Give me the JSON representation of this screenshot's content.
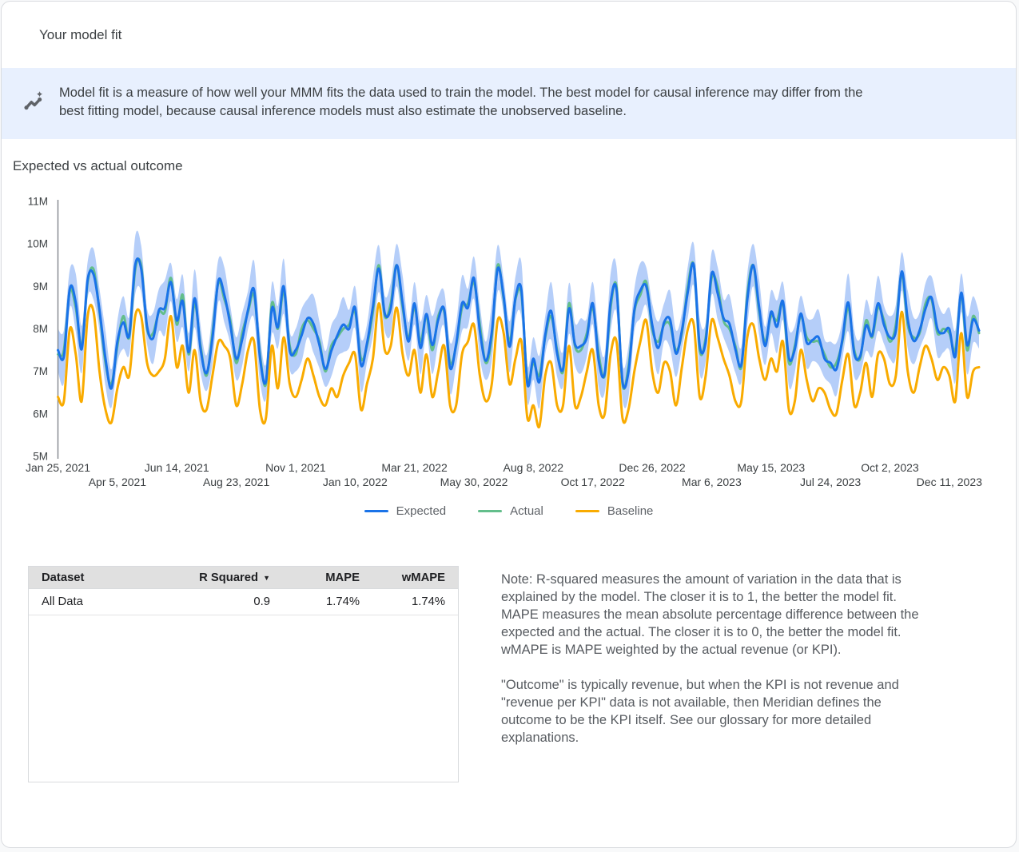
{
  "header": {
    "title": "Your model fit"
  },
  "banner": {
    "icon": "insights-icon",
    "background": "#E8F0FE",
    "lines": [
      "Model fit is a measure of how well your MMM fits the data used to train the model. The best model for causal inference may differ from the",
      "best fitting model, because causal inference models must also estimate the unobserved baseline."
    ]
  },
  "chart_data": {
    "type": "line",
    "title": "Expected vs actual outcome",
    "values_unit": "millions",
    "ylim": [
      5,
      11
    ],
    "y_ticks": [
      "5M",
      "6M",
      "7M",
      "8M",
      "9M",
      "10M",
      "11M"
    ],
    "grid": false,
    "legend_position": "bottom",
    "x_tick_every_n_points": 10,
    "x_ticks": [
      "Jan 25, 2021",
      "Apr 5, 2021",
      "Jun 14, 2021",
      "Aug 23, 2021",
      "Nov 1, 2021",
      "Jan 10, 2022",
      "Mar 21, 2022",
      "May 30, 2022",
      "Aug 8, 2022",
      "Oct 17, 2022",
      "Dec 26, 2022",
      "Mar 6, 2023",
      "May 15, 2023",
      "Jul 24, 2023",
      "Oct 2, 2023",
      "Dec 11, 2023"
    ],
    "series": [
      {
        "name": "Expected",
        "color": "#1A73E8",
        "values": [
          7.5,
          7.35,
          8.95,
          8.62,
          7.52,
          9.16,
          9.28,
          8.44,
          7.3,
          6.6,
          7.7,
          8.15,
          7.85,
          9.5,
          9.42,
          8.06,
          7.78,
          8.44,
          8.5,
          9.1,
          8.2,
          8.65,
          7.45,
          8.72,
          7.52,
          6.96,
          7.78,
          9.14,
          8.8,
          8.1,
          7.3,
          7.75,
          8.45,
          8.92,
          7.32,
          6.76,
          8.48,
          8.04,
          9.0,
          7.5,
          7.5,
          7.85,
          8.25,
          8.12,
          7.62,
          7.06,
          7.48,
          7.84,
          8.1,
          8.0,
          8.5,
          7.15,
          7.65,
          8.52,
          9.42,
          8.36,
          8.48,
          9.5,
          8.6,
          7.7,
          8.6,
          7.55,
          8.35,
          7.62,
          8.22,
          8.46,
          7.08,
          7.64,
          8.6,
          8.5,
          9.2,
          7.95,
          7.25,
          7.92,
          9.42,
          8.76,
          7.58,
          8.74,
          8.9,
          6.7,
          7.3,
          6.75,
          7.85,
          8.42,
          7.42,
          7.06,
          8.48,
          7.64,
          7.6,
          7.8,
          8.6,
          7.25,
          6.95,
          8.62,
          8.92,
          6.76,
          6.98,
          8.44,
          8.9,
          9.0,
          8.1,
          7.55,
          8.15,
          8.22,
          7.42,
          7.96,
          8.88,
          9.5,
          7.6,
          7.7,
          9.3,
          8.85,
          8.25,
          8.12,
          7.52,
          7.16,
          8.68,
          9.5,
          8.5,
          7.6,
          8.4,
          8.05,
          8.65,
          7.32,
          7.52,
          8.36,
          7.68,
          7.74,
          7.8,
          7.3,
          7.2,
          7.05,
          7.75,
          8.62,
          7.42,
          7.36,
          8.08,
          7.84,
          8.6,
          8.1,
          7.8,
          7.95,
          9.35,
          8.22,
          7.72,
          7.96,
          8.48,
          8.74,
          8.0,
          7.9,
          8.0,
          7.35,
          8.85,
          7.62,
          8.22,
          7.96
        ]
      },
      {
        "name": "Actual",
        "color": "#63BE8B",
        "values": [
          7.4,
          7.5,
          8.9,
          8.5,
          7.6,
          9.1,
          9.4,
          8.4,
          7.2,
          6.7,
          7.6,
          8.3,
          7.8,
          9.4,
          9.5,
          8.0,
          7.9,
          8.4,
          8.4,
          9.2,
          8.1,
          8.8,
          7.4,
          8.6,
          7.6,
          6.9,
          7.9,
          9.1,
          8.7,
          8.2,
          7.2,
          7.9,
          8.4,
          8.8,
          7.4,
          6.7,
          8.6,
          8.0,
          8.9,
          7.6,
          7.4,
          8.0,
          8.2,
          8.0,
          7.7,
          7.0,
          7.6,
          7.8,
          8.0,
          8.1,
          8.4,
          7.3,
          7.6,
          8.4,
          9.5,
          8.3,
          8.6,
          9.5,
          8.5,
          7.8,
          8.5,
          7.7,
          8.3,
          7.5,
          8.3,
          8.4,
          7.2,
          7.6,
          8.5,
          8.6,
          9.1,
          8.1,
          7.2,
          7.8,
          9.5,
          8.7,
          7.7,
          8.7,
          8.8,
          6.8,
          7.2,
          6.9,
          7.8,
          8.3,
          7.5,
          7.0,
          8.6,
          7.6,
          7.5,
          7.9,
          8.5,
          7.4,
          6.9,
          8.5,
          9.0,
          6.7,
          7.1,
          8.4,
          8.8,
          9.1,
          8.0,
          7.7,
          8.1,
          8.1,
          7.5,
          7.9,
          9.0,
          9.5,
          7.5,
          7.8,
          9.2,
          9.0,
          8.2,
          8.0,
          7.6,
          7.1,
          8.8,
          9.5,
          8.4,
          7.7,
          8.3,
          8.2,
          8.6,
          7.2,
          7.6,
          8.3,
          7.8,
          7.7,
          7.7,
          7.4,
          7.1,
          7.2,
          7.7,
          8.5,
          7.5,
          7.3,
          8.2,
          7.8,
          8.5,
          8.2,
          7.7,
          8.1,
          9.3,
          8.1,
          7.8,
          7.9,
          8.6,
          8.7,
          7.9,
          8.0,
          7.9,
          7.5,
          8.8,
          7.5,
          8.3,
          7.9
        ]
      },
      {
        "name": "Baseline",
        "color": "#F9AB00",
        "values": [
          6.4,
          6.3,
          8.0,
          7.4,
          6.3,
          8.3,
          8.4,
          7.0,
          6.1,
          5.8,
          6.6,
          7.1,
          6.9,
          8.3,
          8.3,
          7.2,
          6.9,
          7.0,
          7.3,
          8.3,
          7.1,
          7.6,
          6.5,
          7.5,
          6.3,
          6.1,
          6.9,
          7.7,
          7.6,
          7.3,
          6.2,
          6.7,
          7.5,
          7.7,
          6.1,
          5.9,
          7.6,
          6.6,
          7.8,
          6.7,
          6.4,
          6.8,
          7.3,
          6.9,
          6.4,
          6.2,
          6.6,
          6.4,
          6.9,
          7.2,
          7.4,
          6.1,
          6.7,
          7.3,
          8.6,
          7.5,
          7.6,
          8.5,
          7.4,
          6.9,
          7.5,
          6.5,
          7.4,
          6.4,
          7.0,
          7.6,
          6.2,
          6.2,
          7.4,
          7.7,
          8.1,
          6.9,
          6.3,
          6.7,
          8.2,
          7.9,
          6.7,
          7.3,
          7.7,
          5.9,
          6.2,
          5.7,
          6.9,
          7.2,
          6.2,
          6.2,
          7.6,
          6.2,
          6.4,
          7.0,
          7.5,
          6.2,
          6.0,
          7.4,
          7.7,
          5.9,
          6.1,
          7.0,
          7.7,
          8.2,
          7.0,
          6.5,
          7.2,
          7.0,
          6.2,
          7.1,
          8.0,
          8.1,
          6.4,
          6.9,
          8.2,
          7.8,
          7.3,
          6.9,
          6.3,
          6.3,
          7.8,
          8.1,
          7.3,
          6.8,
          7.3,
          7.0,
          7.7,
          6.1,
          6.3,
          7.5,
          6.8,
          6.3,
          6.6,
          6.5,
          6.1,
          6.0,
          6.8,
          7.4,
          6.2,
          6.5,
          7.2,
          6.4,
          7.4,
          7.3,
          6.7,
          6.9,
          8.4,
          7.0,
          6.5,
          7.1,
          7.6,
          7.3,
          6.8,
          7.1,
          6.9,
          6.3,
          7.9,
          6.4,
          7.0,
          7.1
        ]
      }
    ],
    "confidence_band": {
      "around": "Expected",
      "color": "#ADC9F8",
      "halfwidth_cycle": [
        0.5,
        0.62,
        0.45,
        0.68,
        0.55,
        0.42,
        0.6,
        0.5,
        0.65,
        0.45
      ]
    }
  },
  "table": {
    "columns": [
      "Dataset",
      "R Squared",
      "MAPE",
      "wMAPE"
    ],
    "sort_icon": "▼",
    "sorted_by": "R Squared",
    "rows": [
      {
        "dataset": "All Data",
        "r_squared": "0.9",
        "mape": "1.74%",
        "wmape": "1.74%"
      }
    ]
  },
  "note": {
    "paragraphs": [
      "Note: R-squared measures the amount of variation in the data that is explained by the model. The closer it is to 1, the better the model fit. MAPE measures the mean absolute percentage difference between the expected and the actual. The closer it is to 0, the better the model fit. wMAPE is MAPE weighted by the actual revenue (or KPI).",
      "\"Outcome\" is typically revenue, but when the KPI is not revenue and \"revenue per KPI\" data is not available, then Meridian defines the outcome to be the KPI itself. See our glossary for more detailed explanations."
    ]
  }
}
